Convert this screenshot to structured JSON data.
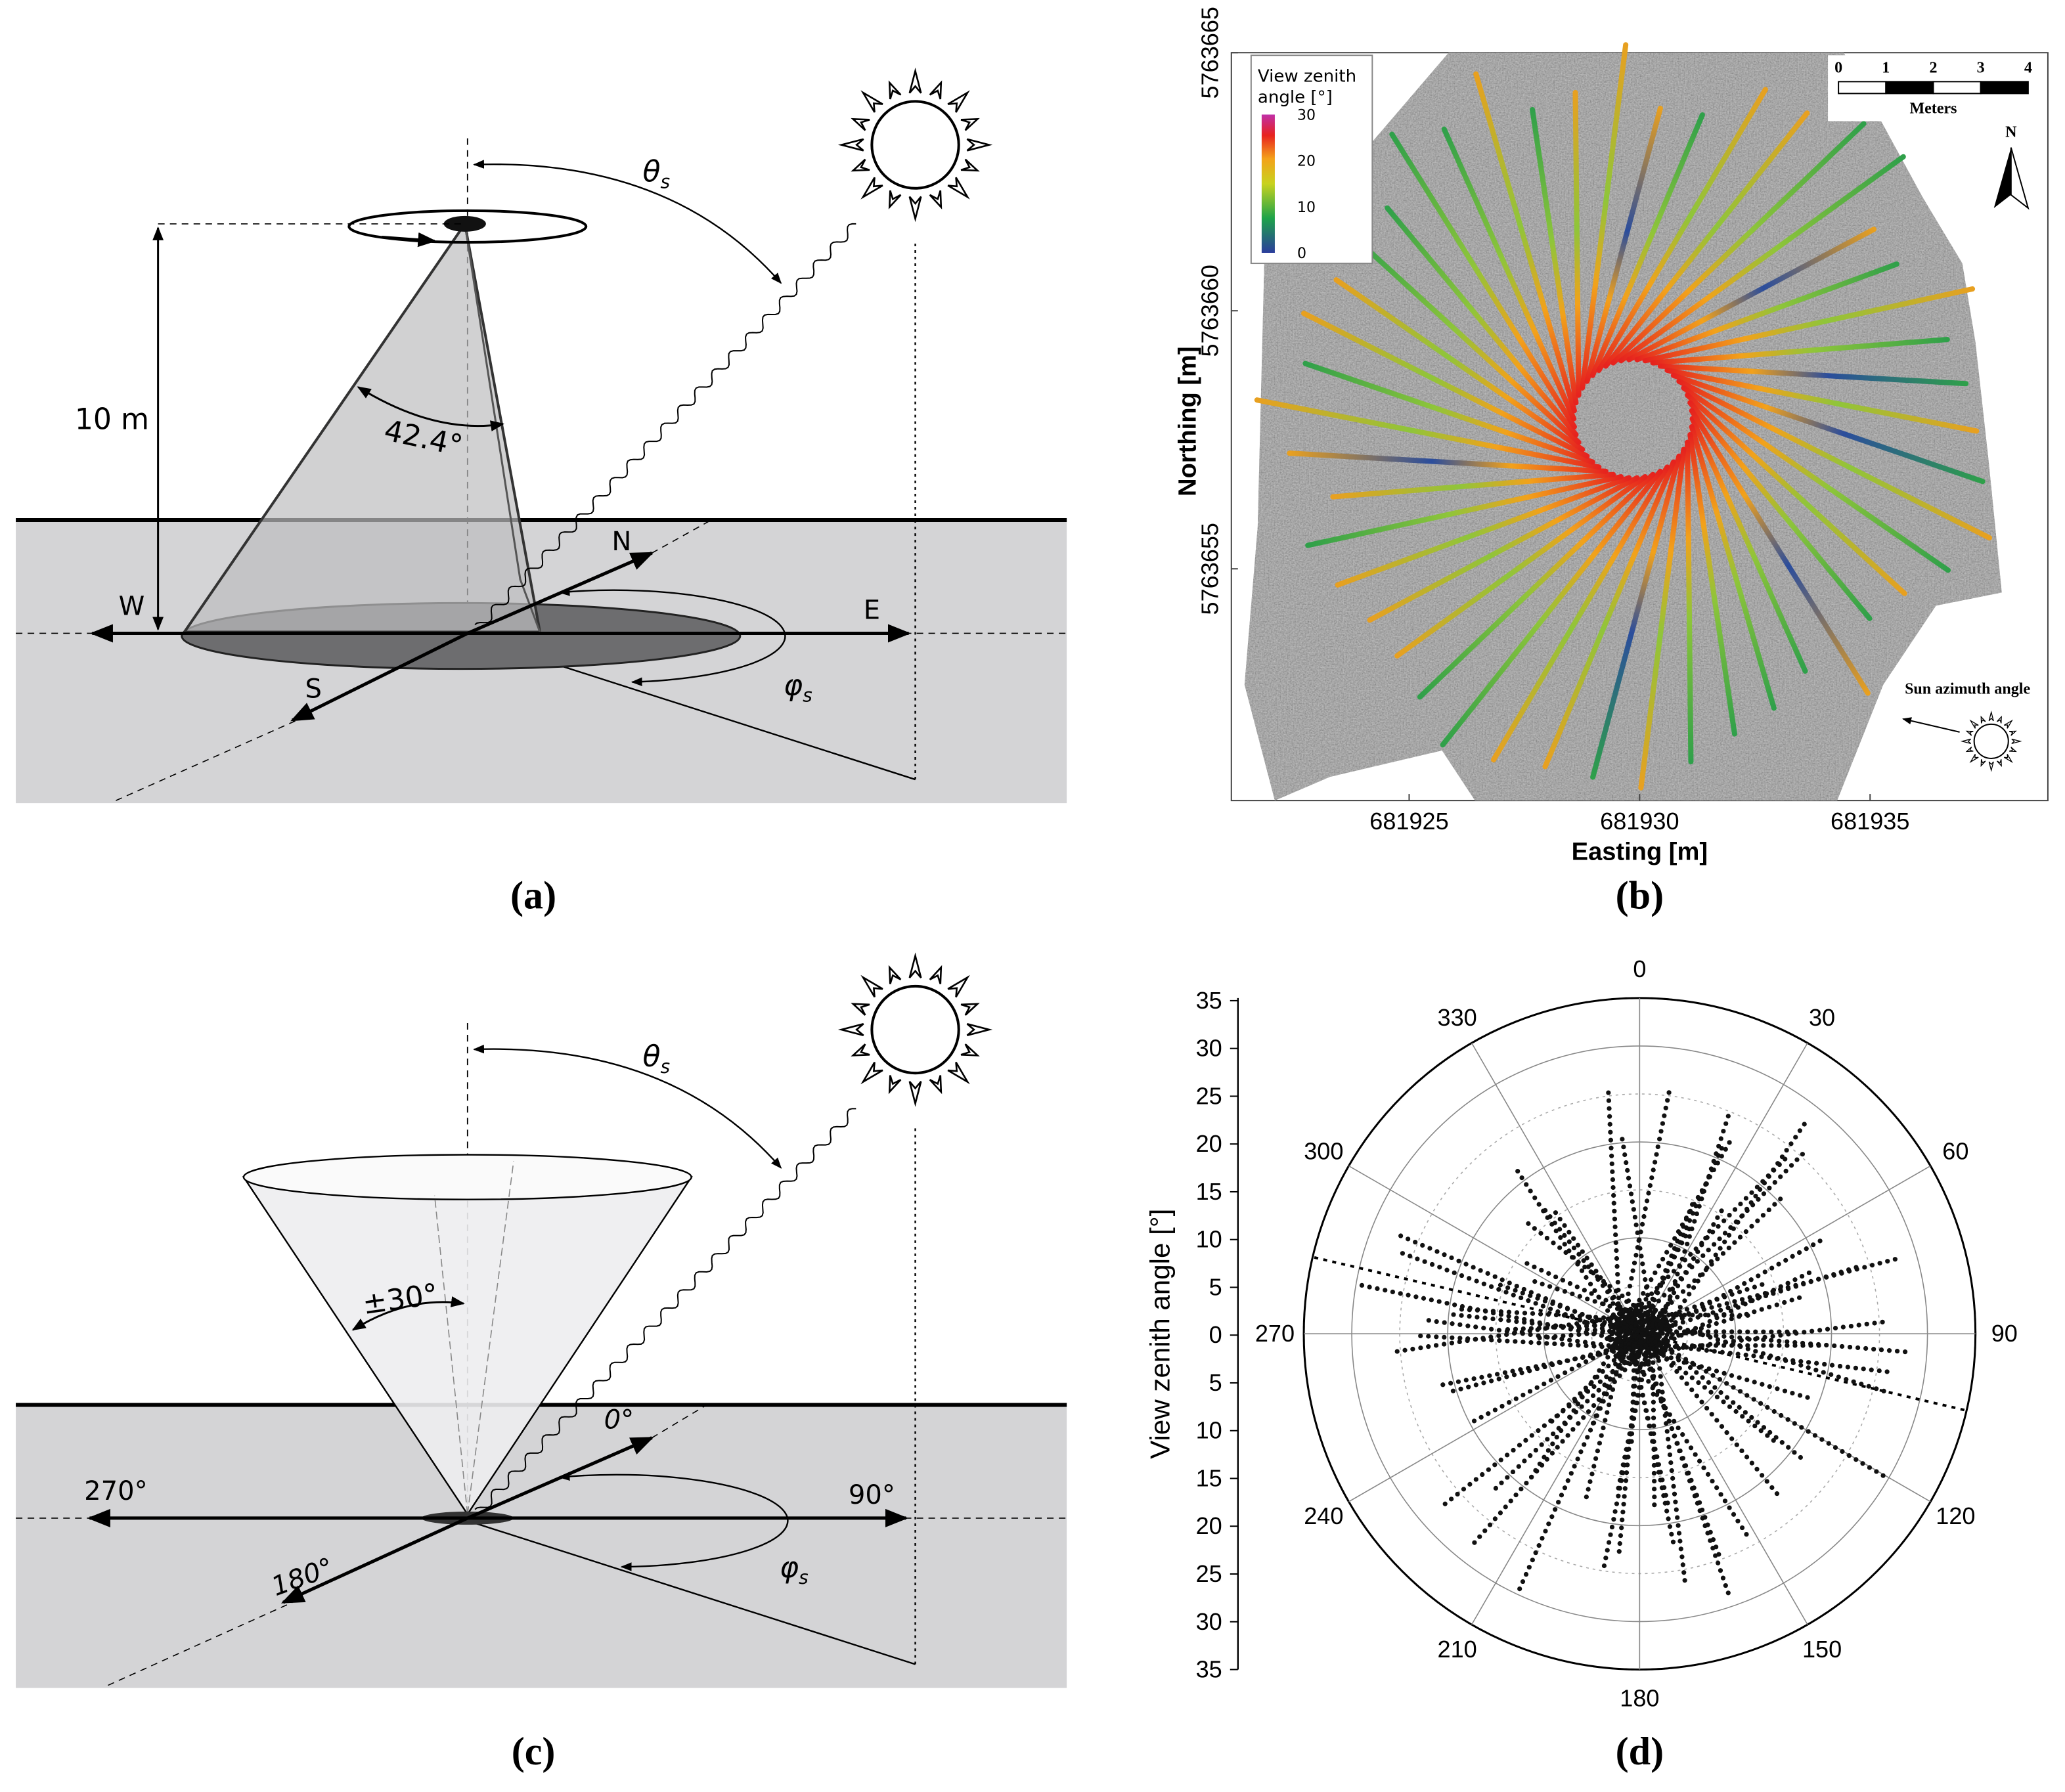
{
  "panels": {
    "a": {
      "label": "(a)",
      "zenith": {
        "symbol": "θ",
        "sub": "s"
      },
      "azimuth": {
        "symbol": "φ",
        "sub": "s"
      },
      "height": "10 m",
      "fov": "42.4°",
      "west": "W",
      "east": "E",
      "north": "N",
      "south": "S"
    },
    "b": {
      "label": "(b)",
      "x_title": "Easting [m]",
      "y_title": "Northing [m]",
      "x_ticks": [
        681925,
        681930,
        681935
      ],
      "y_ticks": [
        5763655,
        5763660,
        5763665
      ],
      "legend_title": [
        "View zenith",
        "angle [°]"
      ],
      "legend_ticks": [
        0,
        10,
        20,
        30
      ],
      "scale_title": "Meters",
      "scale_ticks": [
        0,
        1,
        2,
        3,
        4
      ],
      "north": "N",
      "sun": "Sun azimuth angle"
    },
    "c": {
      "label": "(c)",
      "zenith": {
        "symbol": "θ",
        "sub": "s"
      },
      "azimuth": {
        "symbol": "φ",
        "sub": "s"
      },
      "fov": "±30°",
      "north": "0°",
      "east": "90°",
      "south": "180°",
      "west": "270°"
    },
    "d": {
      "label": "(d)",
      "y_title": "View zenith angle [°]",
      "y_ticks": [
        35,
        30,
        25,
        20,
        15,
        10,
        5,
        0,
        5,
        10,
        15,
        20,
        25,
        30,
        35
      ],
      "angle_ticks": [
        0,
        30,
        60,
        90,
        120,
        150,
        180,
        210,
        240,
        270,
        300,
        330
      ]
    }
  }
}
